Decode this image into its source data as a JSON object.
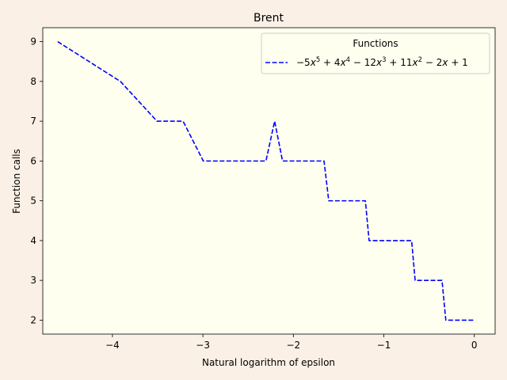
{
  "chart_data": {
    "type": "line",
    "title": "Brent",
    "xlabel": "Natural logarithm of epsilon",
    "ylabel": "Function calls",
    "xlim": [
      -4.77,
      0.23
    ],
    "ylim": [
      1.65,
      9.35
    ],
    "xticks": [
      -4,
      -3,
      -2,
      -1,
      0
    ],
    "xtick_labels": [
      "−4",
      "−3",
      "−2",
      "−1",
      "0"
    ],
    "yticks": [
      2,
      3,
      4,
      5,
      6,
      7,
      8,
      9
    ],
    "ytick_labels": [
      "2",
      "3",
      "4",
      "5",
      "6",
      "7",
      "8",
      "9"
    ],
    "grid": false,
    "plot_background": "#fffff0",
    "figure_background": "#faf0e6",
    "legend": {
      "title": "Functions",
      "placement": "upper right"
    },
    "series": [
      {
        "name": "−5x⁵ + 4x⁴ − 12x³ + 11x² − 2x + 1",
        "color": "#0000ff",
        "linestyle": "dashed",
        "x": [
          -4.605,
          -3.912,
          -3.507,
          -3.219,
          -2.996,
          -2.303,
          -2.207,
          -2.12,
          -1.661,
          -1.609,
          -1.204,
          -1.163,
          -0.693,
          -0.654,
          -0.357,
          -0.315,
          0.0
        ],
        "y": [
          9,
          8,
          7,
          7,
          6,
          6,
          7,
          6,
          6,
          5,
          5,
          4,
          4,
          3,
          3,
          2,
          2
        ]
      }
    ]
  }
}
